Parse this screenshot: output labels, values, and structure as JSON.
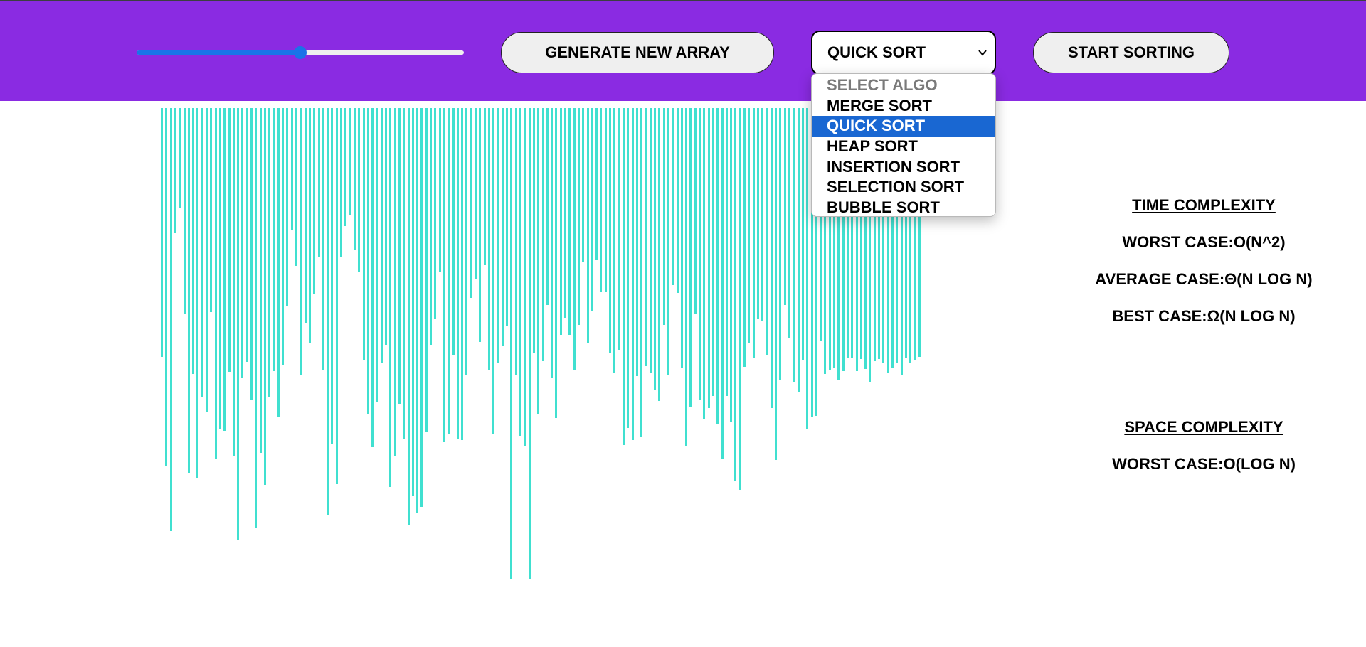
{
  "header": {
    "background": "#8a2be2",
    "generate_label": "GENERATE NEW ARRAY",
    "start_label": "START SORTING",
    "size_slider": {
      "value_fraction": 0.5
    }
  },
  "algorithm_select": {
    "selected_label": "QUICK SORT",
    "options": [
      {
        "label": "SELECT ALGO",
        "disabled": true
      },
      {
        "label": "MERGE SORT"
      },
      {
        "label": "QUICK SORT",
        "selected": true
      },
      {
        "label": "HEAP SORT"
      },
      {
        "label": "INSERTION SORT"
      },
      {
        "label": "SELECTION SORT"
      },
      {
        "label": "BUBBLE SORT"
      }
    ]
  },
  "complexity": {
    "time_heading": "TIME COMPLEXITY",
    "worst": "WORST CASE:O(N^2)",
    "average": "AVERAGE CASE:Θ(N LOG N)",
    "best": "BEST CASE:Ω(N LOG N)",
    "space_heading": "SPACE COMPLEXITY",
    "space_worst": "WORST CASE:O(LOG N)"
  },
  "array": {
    "bar_color": "#40e0d0",
    "values": [
      350,
      504,
      595,
      176,
      140,
      290,
      513,
      374,
      521,
      407,
      427,
      287,
      494,
      451,
      454,
      371,
      490,
      608,
      379,
      357,
      411,
      590,
      485,
      530,
      407,
      370,
      434,
      362,
      278,
      172,
      222,
      375,
      302,
      331,
      261,
      210,
      369,
      573,
      473,
      529,
      210,
      166,
      150,
      200,
      231,
      354,
      430,
      477,
      414,
      358,
      333,
      533,
      489,
      416,
      466,
      587,
      546,
      570,
      561,
      456,
      333,
      297,
      230,
      470,
      459,
      347,
      466,
      467,
      375,
      267,
      241,
      329,
      221,
      368,
      458,
      359,
      334,
      307,
      662,
      376,
      461,
      475,
      662,
      345,
      430,
      356,
      277,
      379,
      436,
      319,
      295,
      319,
      369,
      305,
      216,
      331,
      286,
      214,
      259,
      258,
      345,
      373,
      340,
      474,
      450,
      467,
      377,
      462,
      363,
      372,
      397,
      412,
      305,
      375,
      249,
      260,
      366,
      475,
      421,
      290,
      410,
      437,
      422,
      405,
      445,
      494,
      405,
      441,
      525,
      537,
      364,
      330,
      352,
      296,
      300,
      348,
      422,
      495,
      382,
      277,
      323,
      385,
      400,
      355,
      451,
      434,
      433,
      327,
      374,
      369,
      365,
      382,
      370,
      351,
      352,
      370,
      353,
      367,
      385,
      356,
      353,
      359,
      373,
      366,
      359,
      376,
      351,
      358,
      354,
      350
    ]
  }
}
